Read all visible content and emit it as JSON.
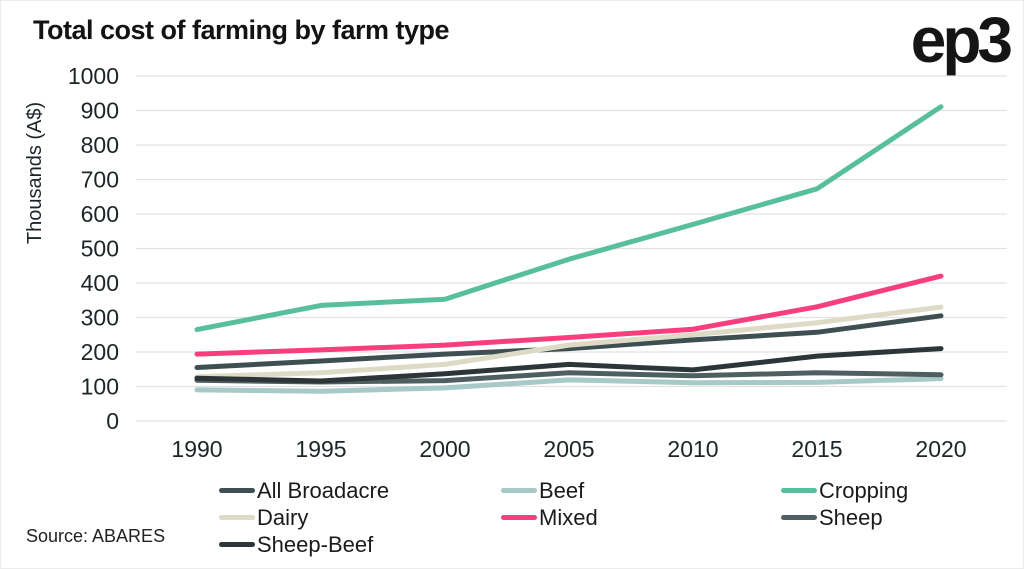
{
  "header": {
    "title": "Total cost of farming by farm type",
    "logo": "ep3"
  },
  "source": "Source: ABARES",
  "colors": {
    "gridline": "#e2e2e2",
    "axis_text": "#1d2527",
    "title_text": "#131313"
  },
  "chart_data": {
    "type": "line",
    "title": "Total cost of farming by farm type",
    "xlabel": "",
    "ylabel": "Thousands (A$)",
    "ylim": [
      0,
      1000
    ],
    "ytick_step": 100,
    "grid": true,
    "legend_position": "bottom",
    "categories": [
      "1990",
      "1995",
      "2000",
      "2005",
      "2010",
      "2015",
      "2020"
    ],
    "series": [
      {
        "name": "All Broadacre",
        "color": "#3e4f51",
        "values": [
          155,
          174,
          194,
          210,
          235,
          257,
          305
        ]
      },
      {
        "name": "Beef",
        "color": "#a7c9c7",
        "values": [
          90,
          86,
          96,
          119,
          111,
          112,
          123
        ]
      },
      {
        "name": "Cropping",
        "color": "#57bf9e",
        "values": [
          265,
          335,
          353,
          469,
          570,
          673,
          911
        ]
      },
      {
        "name": "Dairy",
        "color": "#dddbc5",
        "values": [
          128,
          140,
          164,
          220,
          250,
          285,
          330
        ]
      },
      {
        "name": "Mixed",
        "color": "#f93e80",
        "values": [
          194,
          206,
          220,
          242,
          266,
          331,
          420
        ]
      },
      {
        "name": "Sheep",
        "color": "#4e5f61",
        "values": [
          118,
          113,
          117,
          140,
          131,
          140,
          134
        ]
      },
      {
        "name": "Sheep-Beef",
        "color": "#2c3638",
        "values": [
          124,
          116,
          137,
          164,
          148,
          188,
          210
        ]
      }
    ]
  }
}
